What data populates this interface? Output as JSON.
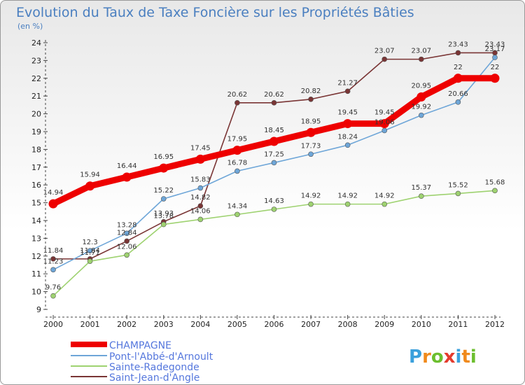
{
  "chart_data": {
    "type": "line",
    "title": "Evolution du Taux de Taxe Foncière sur les Propriétés Bâties",
    "subtitle": "(en %)",
    "categories": [
      "2000",
      "2001",
      "2002",
      "2003",
      "2004",
      "2005",
      "2006",
      "2007",
      "2008",
      "2009",
      "2010",
      "2011",
      "2012"
    ],
    "ylim": [
      9,
      24
    ],
    "y_ticks": [
      9,
      10,
      11,
      12,
      13,
      14,
      15,
      16,
      17,
      18,
      19,
      20,
      21,
      22,
      23,
      24
    ],
    "grid": false,
    "legend_position": "bottom-left",
    "series": [
      {
        "name": "CHAMPAGNE",
        "color": "#ee0000",
        "values": [
          14.94,
          15.94,
          16.44,
          16.95,
          17.45,
          17.95,
          18.45,
          18.95,
          19.45,
          19.45,
          20.95,
          22,
          22
        ],
        "labels": [
          "14.94",
          "15.94",
          "16.44",
          "16.95",
          "17.45",
          "17.95",
          "18.45",
          "18.95",
          "19.45",
          "19.45",
          "20.95",
          "22",
          "22"
        ]
      },
      {
        "name": "Pont-l'Abbé-d'Arnoult",
        "color": "#6ea6d8",
        "values": [
          11.23,
          12.3,
          13.28,
          15.22,
          15.83,
          16.78,
          17.25,
          17.73,
          18.24,
          19.06,
          19.92,
          20.66,
          23.17
        ],
        "labels": [
          "11.23",
          "12.3",
          "13.28",
          "15.22",
          "15.83",
          "16.78",
          "17.25",
          "17.73",
          "18.24",
          "19.06",
          "19.92",
          "20.66",
          "23.17"
        ]
      },
      {
        "name": "Sainte-Radegonde",
        "color": "#9ed270",
        "values": [
          9.76,
          11.71,
          12.06,
          13.78,
          14.06,
          14.34,
          14.63,
          14.92,
          14.92,
          14.92,
          15.37,
          15.52,
          15.68
        ],
        "labels": [
          "9.76",
          "11.71",
          "12.06",
          "13.78",
          "14.06",
          "14.34",
          "14.63",
          "14.92",
          "14.92",
          "14.92",
          "15.37",
          "15.52",
          "15.68"
        ]
      },
      {
        "name": "Saint-Jean-d'Angle",
        "color": "#7a3535",
        "values": [
          11.84,
          11.84,
          12.84,
          13.93,
          14.82,
          20.62,
          20.62,
          20.82,
          21.27,
          23.07,
          23.07,
          23.43,
          23.43
        ],
        "labels": [
          "11.84",
          "11.84",
          "12.84",
          "13.93",
          "14.82",
          "20.62",
          "20.62",
          "20.82",
          "21.27",
          "23.07",
          "23.07",
          "23.43",
          "23.43"
        ]
      }
    ]
  },
  "brand": {
    "logo_text": "Proxiti",
    "logo_colors": [
      "#3aa0dc",
      "#f08a1c",
      "#6cbf2f",
      "#e43b2d",
      "#3aa0dc",
      "#f08a1c",
      "#6cbf2f"
    ]
  }
}
